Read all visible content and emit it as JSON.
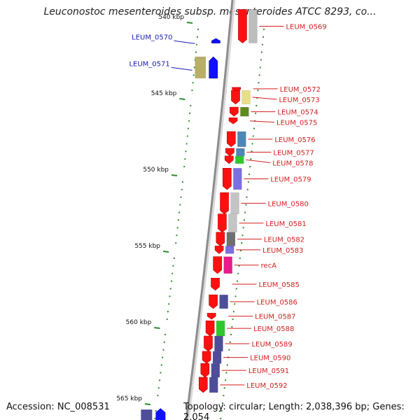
{
  "header": {
    "title": "Leuconostoc mesenteroides subsp. mesenteroides ATCC 8293, co..."
  },
  "footer": {
    "accession": "Accession: NC_008531",
    "topology": "Topology: circular; Length: 2,038,396 bp; Genes: 2,054"
  },
  "colors": {
    "forward_label": "#1a1ab4",
    "reverse_label": "#d21e1e",
    "tick": "#2e8b2e",
    "backbone": "#8c8c8c"
  },
  "map": {
    "kbp_unit": "kbp",
    "kbp_ticks": [
      {
        "kbp": 540,
        "label": "540 kbp"
      },
      {
        "kbp": 545,
        "label": "545 kbp"
      },
      {
        "kbp": 550,
        "label": "550 kbp"
      },
      {
        "kbp": 555,
        "label": "555 kbp"
      },
      {
        "kbp": 560,
        "label": "560 kbp"
      },
      {
        "kbp": 565,
        "label": "565 kbp"
      }
    ],
    "genes": [
      {
        "label": "LEUM_0569",
        "strand": "reverse",
        "cog_color": "#bdbdbd",
        "start_kbp": 539.2,
        "end_kbp": 541.4
      },
      {
        "label": "LEUM_0570",
        "strand": "forward",
        "cog_color": "#ffffff",
        "start_kbp": 541.1,
        "end_kbp": 541.4
      },
      {
        "label": "LEUM_0571",
        "strand": "forward",
        "cog_color": "#b8ae66",
        "start_kbp": 542.3,
        "end_kbp": 543.7
      },
      {
        "label": "LEUM_0572",
        "strand": "reverse",
        "cog_color": "#ffffff",
        "start_kbp": 544.3,
        "end_kbp": 544.5
      },
      {
        "label": "LEUM_0573",
        "strand": "reverse",
        "cog_color": "#e9df8a",
        "start_kbp": 544.5,
        "end_kbp": 545.4
      },
      {
        "label": "LEUM_0574",
        "strand": "reverse",
        "cog_color": "#5f8a1e",
        "start_kbp": 545.6,
        "end_kbp": 546.2
      },
      {
        "label": "LEUM_0575",
        "strand": "reverse",
        "cog_color": "#ffffff",
        "start_kbp": 546.3,
        "end_kbp": 546.7
      },
      {
        "label": "LEUM_0576",
        "strand": "reverse",
        "cog_color": "#4f86b8",
        "start_kbp": 547.2,
        "end_kbp": 548.2
      },
      {
        "label": "LEUM_0577",
        "strand": "reverse",
        "cog_color": "#4f86b8",
        "start_kbp": 548.3,
        "end_kbp": 548.8
      },
      {
        "label": "LEUM_0578",
        "strand": "reverse",
        "cog_color": "#2ec82e",
        "start_kbp": 548.8,
        "end_kbp": 549.3
      },
      {
        "label": "LEUM_0579",
        "strand": "reverse",
        "cog_color": "#7b6ee0",
        "start_kbp": 549.6,
        "end_kbp": 551.0
      },
      {
        "label": "LEUM_0580",
        "strand": "reverse",
        "cog_color": "#c4c4c4",
        "start_kbp": 551.2,
        "end_kbp": 552.6
      },
      {
        "label": "LEUM_0581",
        "strand": "reverse",
        "cog_color": "#c4c4c4",
        "start_kbp": 552.6,
        "end_kbp": 553.8
      },
      {
        "label": "LEUM_0582",
        "strand": "reverse",
        "cog_color": "#6f6f6f",
        "start_kbp": 553.8,
        "end_kbp": 554.7
      },
      {
        "label": "LEUM_0583",
        "strand": "reverse",
        "cog_color": "#7b6ee0",
        "start_kbp": 554.7,
        "end_kbp": 555.2
      },
      {
        "label": "recA",
        "strand": "reverse",
        "cog_color": "#e81a8c",
        "start_kbp": 555.4,
        "end_kbp": 556.5
      },
      {
        "label": "LEUM_0585",
        "strand": "reverse",
        "cog_color": "#ffffff",
        "start_kbp": 556.8,
        "end_kbp": 557.6
      },
      {
        "label": "LEUM_0586",
        "strand": "reverse",
        "cog_color": "#4d4d9a",
        "start_kbp": 557.9,
        "end_kbp": 558.8
      },
      {
        "label": "LEUM_0587",
        "strand": "reverse",
        "cog_color": "#ffffff",
        "start_kbp": 559.1,
        "end_kbp": 559.5
      },
      {
        "label": "LEUM_0588",
        "strand": "reverse",
        "cog_color": "#2ec82e",
        "start_kbp": 559.6,
        "end_kbp": 560.6
      },
      {
        "label": "LEUM_0589",
        "strand": "reverse",
        "cog_color": "#4d4d9a",
        "start_kbp": 560.6,
        "end_kbp": 561.6
      },
      {
        "label": "LEUM_0590",
        "strand": "reverse",
        "cog_color": "#4d4d9a",
        "start_kbp": 561.6,
        "end_kbp": 562.4
      },
      {
        "label": "LEUM_0591",
        "strand": "reverse",
        "cog_color": "#4d4d9a",
        "start_kbp": 562.4,
        "end_kbp": 563.3
      },
      {
        "label": "LEUM_0592",
        "strand": "reverse",
        "cog_color": "#4d4d9a",
        "start_kbp": 563.3,
        "end_kbp": 564.3
      }
    ]
  }
}
